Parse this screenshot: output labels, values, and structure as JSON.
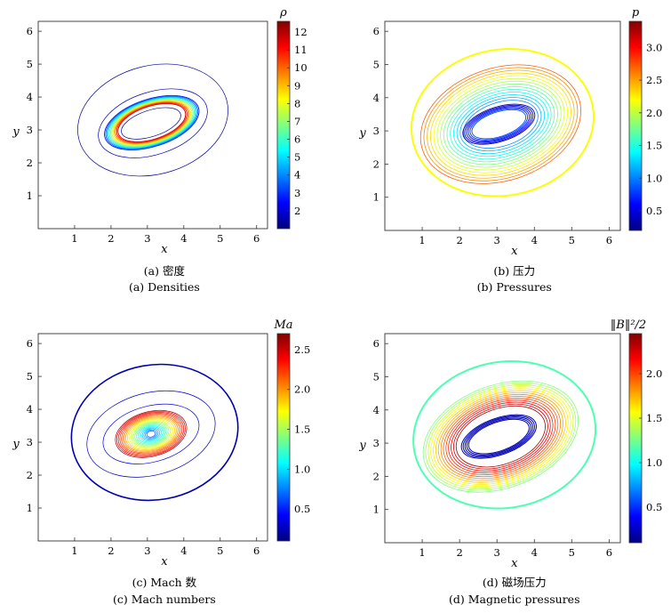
{
  "chart_data": [
    {
      "type": "contour",
      "panel_id": "a",
      "caption_zh": "(a) 密度",
      "caption_en": "(a) Densities",
      "xlabel": "x",
      "ylabel": "y",
      "xlim": [
        0,
        6.3
      ],
      "ylim": [
        0,
        6.3
      ],
      "x_ticks": [
        1,
        2,
        3,
        4,
        5,
        6
      ],
      "y_ticks": [
        1,
        2,
        3,
        4,
        5,
        6
      ],
      "colorbar": {
        "title": "ρ",
        "range": [
          1,
          12.6
        ],
        "ticks": [
          2,
          3,
          4,
          5,
          6,
          7,
          8,
          9,
          10,
          11,
          12
        ]
      },
      "grid": false
    },
    {
      "type": "contour",
      "panel_id": "b",
      "caption_zh": "(b) 压力",
      "caption_en": "(b) Pressures",
      "xlabel": "x",
      "ylabel": "y",
      "xlim": [
        0,
        6.3
      ],
      "ylim": [
        0,
        6.3
      ],
      "x_ticks": [
        1,
        2,
        3,
        4,
        5,
        6
      ],
      "y_ticks": [
        1,
        2,
        3,
        4,
        5,
        6
      ],
      "colorbar": {
        "title": "p",
        "range": [
          0.2,
          3.4
        ],
        "ticks": [
          "0.5",
          "1.0",
          "1.5",
          "2.0",
          "2.5",
          "3.0"
        ]
      },
      "grid": false
    },
    {
      "type": "contour",
      "panel_id": "c",
      "caption_zh": "(c) Mach 数",
      "caption_en": "(c) Mach numbers",
      "xlabel": "x",
      "ylabel": "y",
      "xlim": [
        0,
        6.3
      ],
      "ylim": [
        0,
        6.3
      ],
      "x_ticks": [
        1,
        2,
        3,
        4,
        5,
        6
      ],
      "y_ticks": [
        1,
        2,
        3,
        4,
        5,
        6
      ],
      "colorbar": {
        "title": "Ma",
        "range": [
          0.1,
          2.7
        ],
        "ticks": [
          "0.5",
          "1.0",
          "1.5",
          "2.0",
          "2.5"
        ]
      },
      "grid": false
    },
    {
      "type": "contour",
      "panel_id": "d",
      "caption_zh": "(d) 磁场压力",
      "caption_en": "(d) Magnetic pressures",
      "xlabel": "x",
      "ylabel": "y",
      "xlim": [
        0,
        6.3
      ],
      "ylim": [
        0,
        6.3
      ],
      "x_ticks": [
        1,
        2,
        3,
        4,
        5,
        6
      ],
      "y_ticks": [
        1,
        2,
        3,
        4,
        5,
        6
      ],
      "colorbar": {
        "title": "‖B‖²/2",
        "range": [
          0.1,
          2.45
        ],
        "ticks": [
          "0.5",
          "1.0",
          "1.5",
          "2.0"
        ]
      },
      "grid": false
    }
  ]
}
